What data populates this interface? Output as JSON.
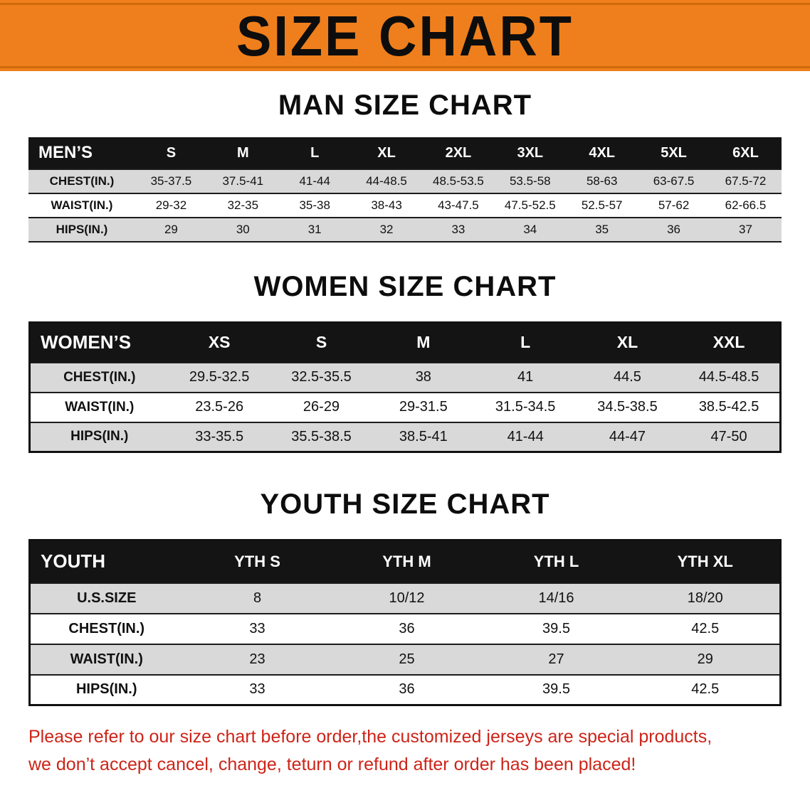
{
  "colors": {
    "banner_orange": "#ef7f1c",
    "banner_stripe": "#d06a0a",
    "header_black": "#141414",
    "row_gray": "#d9d9d9",
    "notice_red": "#cd2418"
  },
  "banner": {
    "title": "SIZE CHART"
  },
  "men": {
    "heading": "MAN SIZE CHART",
    "table": {
      "header": [
        "MEN’S",
        "S",
        "M",
        "L",
        "XL",
        "2XL",
        "3XL",
        "4XL",
        "5XL",
        "6XL"
      ],
      "rows": [
        {
          "label": "CHEST(IN.)",
          "values": [
            "35-37.5",
            "37.5-41",
            "41-44",
            "44-48.5",
            "48.5-53.5",
            "53.5-58",
            "58-63",
            "63-67.5",
            "67.5-72"
          ]
        },
        {
          "label": "WAIST(IN.)",
          "values": [
            "29-32",
            "32-35",
            "35-38",
            "38-43",
            "43-47.5",
            "47.5-52.5",
            "52.5-57",
            "57-62",
            "62-66.5"
          ]
        },
        {
          "label": "HIPS(IN.)",
          "values": [
            "29",
            "30",
            "31",
            "32",
            "33",
            "34",
            "35",
            "36",
            "37"
          ]
        }
      ]
    }
  },
  "women": {
    "heading": "WOMEN SIZE CHART",
    "table": {
      "header": [
        "WOMEN’S",
        "XS",
        "S",
        "M",
        "L",
        "XL",
        "XXL"
      ],
      "rows": [
        {
          "label": "CHEST(IN.)",
          "values": [
            "29.5-32.5",
            "32.5-35.5",
            "38",
            "41",
            "44.5",
            "44.5-48.5"
          ]
        },
        {
          "label": "WAIST(IN.)",
          "values": [
            "23.5-26",
            "26-29",
            "29-31.5",
            "31.5-34.5",
            "34.5-38.5",
            "38.5-42.5"
          ]
        },
        {
          "label": "HIPS(IN.)",
          "values": [
            "33-35.5",
            "35.5-38.5",
            "38.5-41",
            "41-44",
            "44-47",
            "47-50"
          ]
        }
      ]
    }
  },
  "youth": {
    "heading": "YOUTH SIZE CHART",
    "table": {
      "header": [
        "YOUTH",
        "YTH S",
        "YTH M",
        "YTH L",
        "YTH XL"
      ],
      "rows": [
        {
          "label": "U.S.SIZE",
          "values": [
            "8",
            "10/12",
            "14/16",
            "18/20"
          ]
        },
        {
          "label": "CHEST(IN.)",
          "values": [
            "33",
            "36",
            "39.5",
            "42.5"
          ]
        },
        {
          "label": "WAIST(IN.)",
          "values": [
            "23",
            "25",
            "27",
            "29"
          ]
        },
        {
          "label": "HIPS(IN.)",
          "values": [
            "33",
            "36",
            "39.5",
            "42.5"
          ]
        }
      ]
    }
  },
  "footer": {
    "line1": "Please refer to our size chart before order,the customized jerseys are special products,",
    "line2": "we don’t accept cancel, change, teturn or refund after order has been placed!"
  }
}
